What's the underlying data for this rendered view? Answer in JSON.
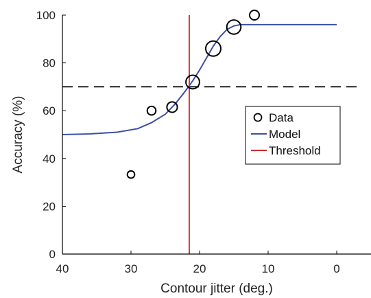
{
  "chart_data": {
    "type": "scatter",
    "xlabel": "Contour jitter (deg.)",
    "ylabel": "Accuracy (%)",
    "xlim": [
      40,
      0
    ],
    "x_reversed": true,
    "ylim": [
      0,
      100
    ],
    "x_ticks": [
      "40",
      "30",
      "20",
      "10",
      "0"
    ],
    "y_ticks": [
      "0",
      "20",
      "40",
      "60",
      "80",
      "100"
    ],
    "grid": false,
    "legend_position": "right",
    "legend": [
      "Data",
      "Model",
      "Threshold"
    ],
    "data_points": [
      {
        "x": 30,
        "y": 33.3,
        "n": 1
      },
      {
        "x": 27,
        "y": 60,
        "n": 2
      },
      {
        "x": 24,
        "y": 61.5,
        "n": 4
      },
      {
        "x": 21,
        "y": 72,
        "n": 9
      },
      {
        "x": 18,
        "y": 86,
        "n": 12
      },
      {
        "x": 15,
        "y": 95,
        "n": 10
      },
      {
        "x": 12,
        "y": 100,
        "n": 3
      }
    ],
    "model_curve": [
      {
        "x": 40,
        "y": 50
      },
      {
        "x": 36,
        "y": 50.3
      },
      {
        "x": 32,
        "y": 51
      },
      {
        "x": 29,
        "y": 52.5
      },
      {
        "x": 27,
        "y": 55
      },
      {
        "x": 25,
        "y": 58.5
      },
      {
        "x": 23.5,
        "y": 63
      },
      {
        "x": 22,
        "y": 68.5
      },
      {
        "x": 21,
        "y": 72.5
      },
      {
        "x": 20,
        "y": 77
      },
      {
        "x": 19,
        "y": 82
      },
      {
        "x": 18,
        "y": 87
      },
      {
        "x": 17,
        "y": 91
      },
      {
        "x": 16,
        "y": 94
      },
      {
        "x": 15,
        "y": 95.5
      },
      {
        "x": 14,
        "y": 96
      },
      {
        "x": 10,
        "y": 96
      },
      {
        "x": 0,
        "y": 96
      }
    ],
    "threshold_x": 21.5,
    "reference_y": 70,
    "colors": {
      "data": "#000000",
      "model": "#3b4fa8",
      "threshold": "#d02a2a",
      "reference": "#000000"
    }
  }
}
